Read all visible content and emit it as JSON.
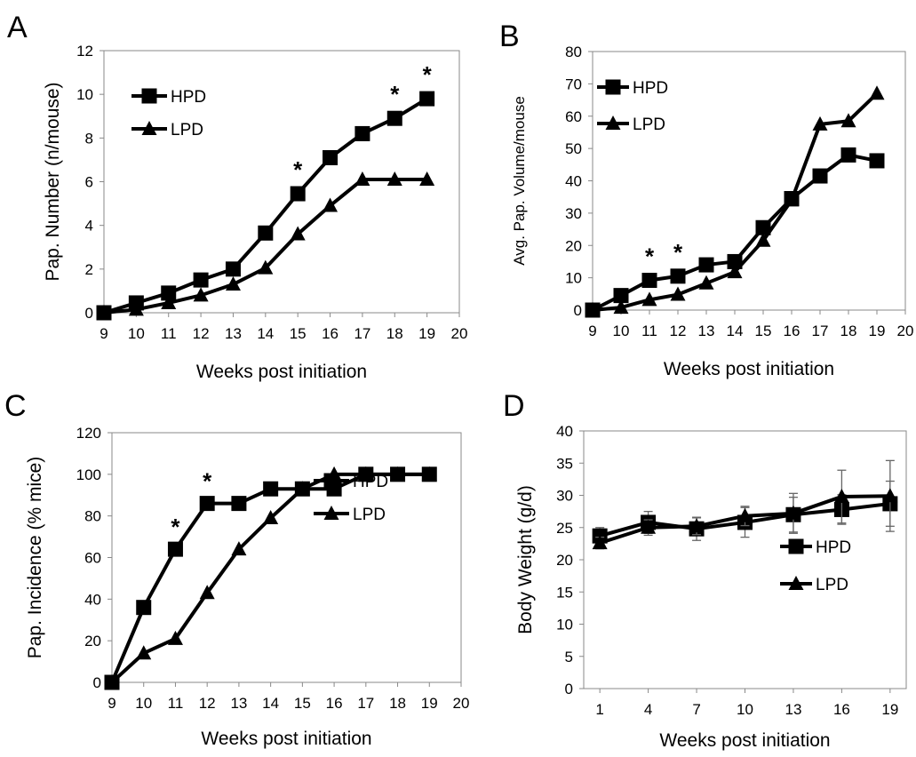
{
  "chart_data": [
    {
      "panel": "A",
      "type": "line",
      "xlabel": "Weeks post initiation",
      "ylabel": "Pap. Number (n/mouse)",
      "xlim": [
        9,
        20
      ],
      "ylim": [
        0,
        12
      ],
      "x_ticks": [
        "9",
        "10",
        "11",
        "12",
        "13",
        "14",
        "15",
        "16",
        "17",
        "18",
        "19",
        "20"
      ],
      "y_ticks": [
        "0",
        "2",
        "4",
        "6",
        "8",
        "10",
        "12"
      ],
      "x": [
        9,
        10,
        11,
        12,
        13,
        14,
        15,
        16,
        17,
        18,
        19
      ],
      "series": [
        {
          "name": "HPD",
          "marker": "square",
          "values": [
            0,
            0.45,
            0.9,
            1.5,
            2.0,
            3.65,
            5.45,
            7.1,
            8.2,
            8.9,
            9.8
          ]
        },
        {
          "name": "LPD",
          "marker": "triangle",
          "values": [
            0,
            0.15,
            0.45,
            0.8,
            1.3,
            2.05,
            3.6,
            4.9,
            6.1,
            6.1,
            6.1
          ]
        }
      ],
      "annotations": [
        {
          "text": "*",
          "x": 15,
          "y": 5.45
        },
        {
          "text": "*",
          "x": 18,
          "y": 8.9
        },
        {
          "text": "*",
          "x": 19,
          "y": 9.8
        }
      ],
      "legend_position": "top-left",
      "grid": false
    },
    {
      "panel": "B",
      "type": "line",
      "xlabel": "Weeks post initiation",
      "ylabel": "Avg. Pap. Volume/mouse",
      "xlim": [
        9,
        20
      ],
      "ylim": [
        0,
        80
      ],
      "x_ticks": [
        "9",
        "10",
        "11",
        "12",
        "13",
        "14",
        "15",
        "16",
        "17",
        "18",
        "19",
        "20"
      ],
      "y_ticks": [
        "0",
        "10",
        "20",
        "30",
        "40",
        "50",
        "60",
        "70",
        "80"
      ],
      "x": [
        9,
        10,
        11,
        12,
        13,
        14,
        15,
        16,
        17,
        18,
        19
      ],
      "series": [
        {
          "name": "HPD",
          "marker": "square",
          "values": [
            0,
            4.5,
            9.2,
            10.5,
            14,
            15,
            25.5,
            34.5,
            41.5,
            48,
            46.2
          ]
        },
        {
          "name": "LPD",
          "marker": "triangle",
          "values": [
            0,
            0.8,
            3.2,
            4.8,
            8.3,
            11.8,
            21.5,
            34,
            57.5,
            58.5,
            67
          ]
        }
      ],
      "annotations": [
        {
          "text": "*",
          "x": 11,
          "y": 9.2
        },
        {
          "text": "*",
          "x": 12,
          "y": 10.5
        }
      ],
      "legend_position": "top-left",
      "grid": false
    },
    {
      "panel": "C",
      "type": "line",
      "xlabel": "Weeks post initiation",
      "ylabel": "Pap. Incidence (% mice)",
      "xlim": [
        9,
        20
      ],
      "ylim": [
        0,
        120
      ],
      "x_ticks": [
        "9",
        "10",
        "11",
        "12",
        "13",
        "14",
        "15",
        "16",
        "17",
        "18",
        "19",
        "20"
      ],
      "y_ticks": [
        "0",
        "20",
        "40",
        "60",
        "80",
        "100",
        "120"
      ],
      "x": [
        9,
        10,
        11,
        12,
        13,
        14,
        15,
        16,
        17,
        18,
        19
      ],
      "series": [
        {
          "name": "HPD",
          "marker": "square",
          "values": [
            0,
            36,
            64,
            86,
            86,
            93,
            93,
            93,
            100,
            100,
            100
          ]
        },
        {
          "name": "LPD",
          "marker": "triangle",
          "values": [
            0,
            14,
            21,
            43,
            64,
            79,
            93,
            100,
            100,
            100,
            100
          ]
        }
      ],
      "annotations": [
        {
          "text": "*",
          "x": 11,
          "y": 64
        },
        {
          "text": "*",
          "x": 12,
          "y": 86
        }
      ],
      "legend_position": "right",
      "grid": false
    },
    {
      "panel": "D",
      "type": "line",
      "xlabel": "Weeks post initiation",
      "ylabel": "Body Weight (g/d)",
      "xlim": [
        0,
        20
      ],
      "ylim": [
        0,
        40
      ],
      "x_ticks": [
        "1",
        "4",
        "7",
        "10",
        "13",
        "16",
        "19"
      ],
      "y_ticks": [
        "0",
        "5",
        "10",
        "15",
        "20",
        "25",
        "30",
        "35",
        "40"
      ],
      "x": [
        1,
        4,
        7,
        10,
        13,
        16,
        19
      ],
      "series": [
        {
          "name": "HPD",
          "marker": "square",
          "values": [
            23.7,
            25.8,
            24.8,
            25.8,
            27,
            27.8,
            28.7
          ],
          "error": [
            1.3,
            1.7,
            1.8,
            2.3,
            2.7,
            2.3,
            3.5
          ]
        },
        {
          "name": "LPD",
          "marker": "triangle",
          "values": [
            22.6,
            25,
            25.2,
            26.8,
            27.2,
            29.8,
            29.9
          ],
          "error": [
            0.9,
            1.2,
            1.3,
            1.5,
            3.1,
            4.1,
            5.5
          ]
        }
      ],
      "legend_position": "bottom-right",
      "grid": false
    }
  ]
}
